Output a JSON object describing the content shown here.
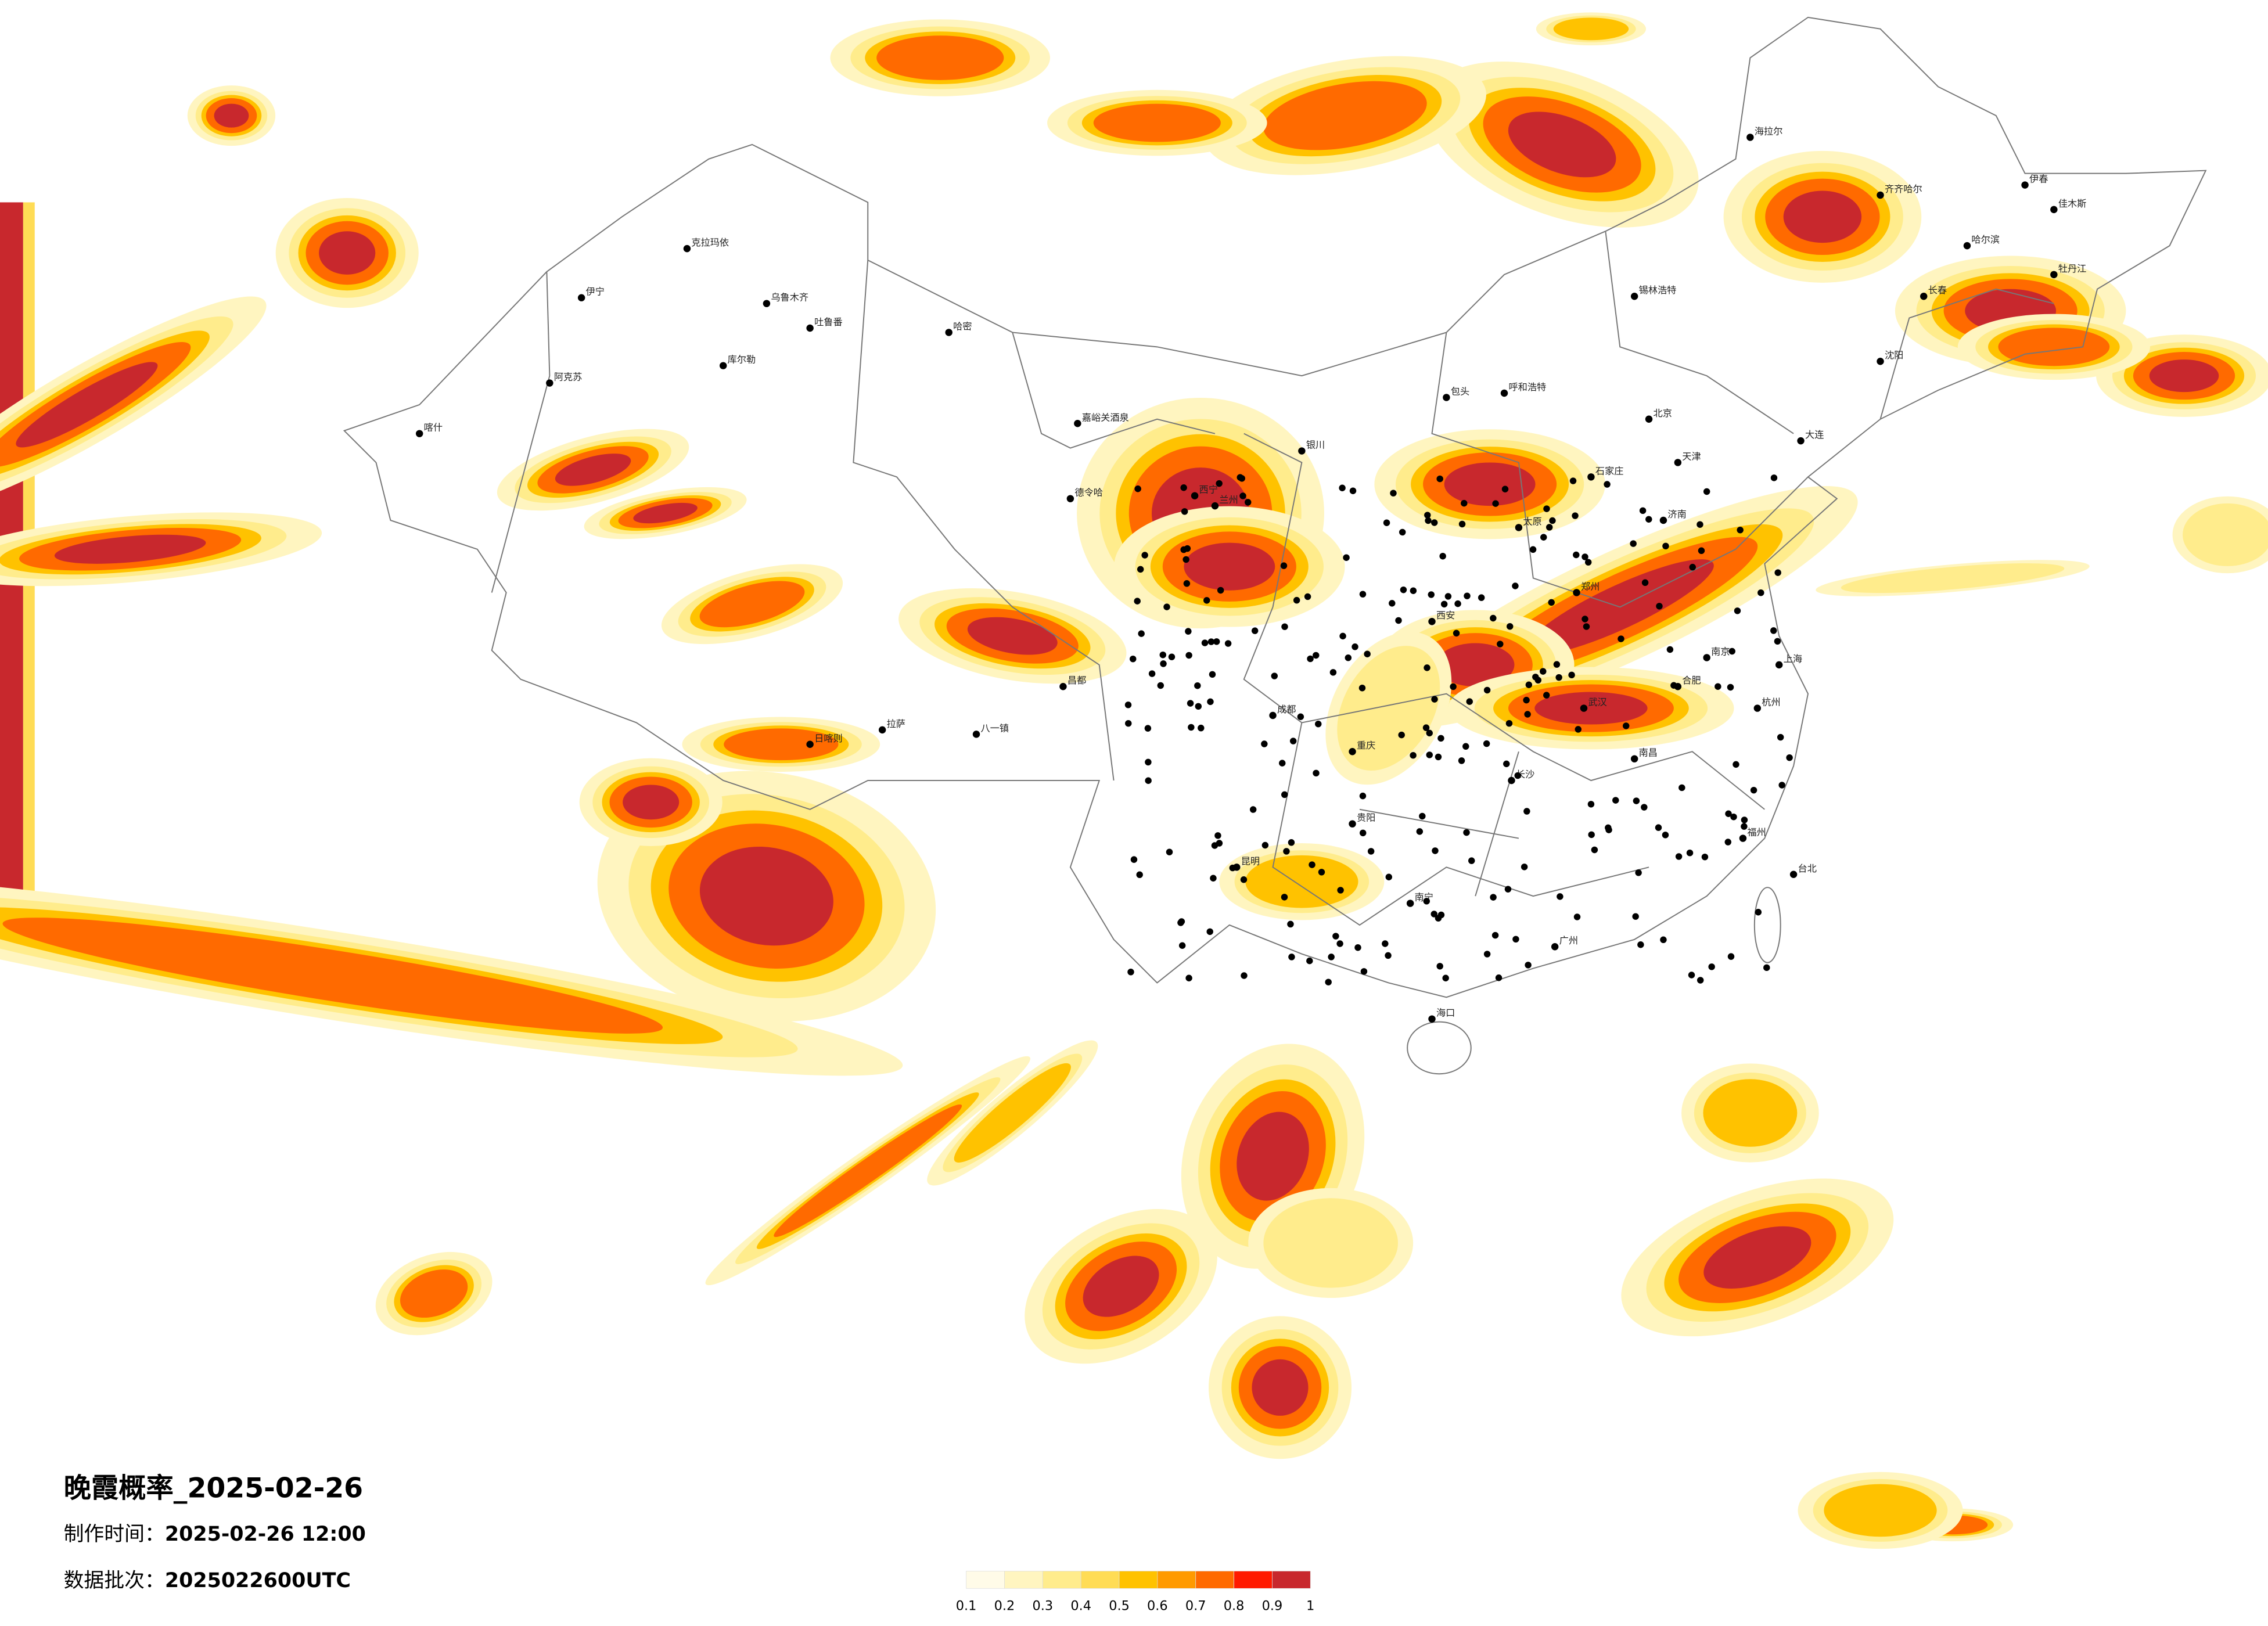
{
  "title": "晚霞概率_2025-02-26",
  "production_time": {
    "label": "制作时间：",
    "value": "2025-02-26 12:00"
  },
  "data_batch": {
    "label": "数据批次：",
    "value": "2025022600UTC"
  },
  "legend": {
    "colors": [
      "#fffbe8",
      "#fff5c0",
      "#ffec8c",
      "#ffdc55",
      "#ffc200",
      "#ff9a00",
      "#ff6a00",
      "#ff1a00",
      "#c8282d"
    ],
    "ticks": [
      0.1,
      0.2,
      0.3,
      0.4,
      0.5,
      0.6,
      0.7,
      0.8,
      0.9,
      1
    ]
  },
  "cities": [
    "克拉玛依",
    "伊宁",
    "乌鲁木齐",
    "吐鲁番",
    "哈密",
    "库尔勒",
    "阿克苏",
    "喀什",
    "嘉峪关酒泉",
    "德令哈",
    "日喀则",
    "拉萨",
    "八一镇",
    "昌都",
    "包头",
    "呼和浩特",
    "北京",
    "天津",
    "石家庄",
    "太原",
    "济南",
    "郑州",
    "西安",
    "兰州",
    "西宁",
    "银川",
    "成都",
    "重庆",
    "贵阳",
    "昆明",
    "南宁",
    "广州",
    "长沙",
    "武汉",
    "南昌",
    "南京",
    "上海",
    "杭州",
    "福州",
    "合肥",
    "哈尔滨",
    "长春",
    "沈阳",
    "大连",
    "海口",
    "台北",
    "锡林浩特",
    "齐齐哈尔",
    "海拉尔",
    "伊春",
    "佳木斯",
    "牡丹江"
  ]
}
